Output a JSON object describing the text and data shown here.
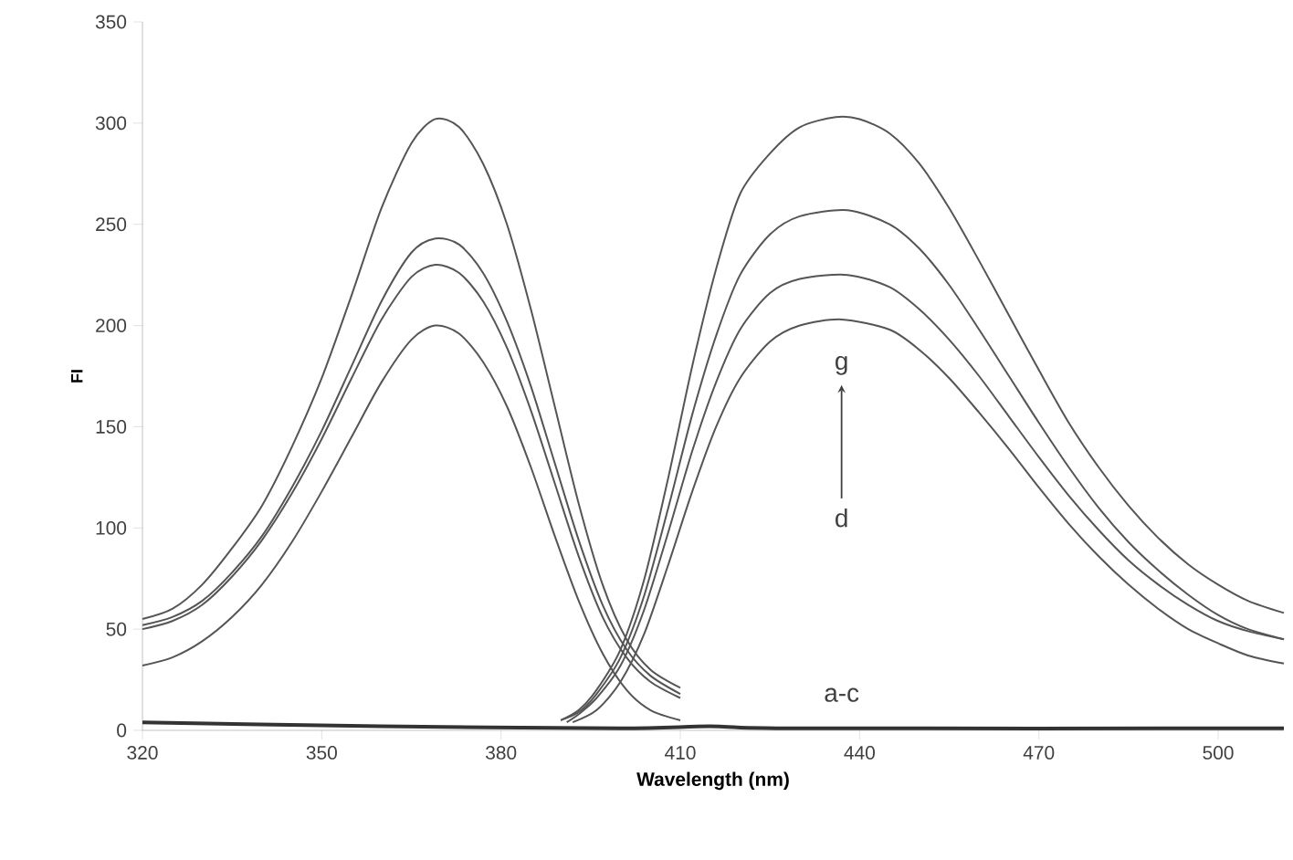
{
  "chart_data": {
    "type": "line",
    "xlabel": "Wavelength (nm)",
    "ylabel": "FI",
    "xlim": [
      320,
      511
    ],
    "ylim": [
      0,
      350
    ],
    "xticks": [
      320,
      350,
      380,
      410,
      440,
      470,
      500
    ],
    "yticks": [
      0,
      50,
      100,
      150,
      200,
      250,
      300,
      350
    ],
    "grid": false,
    "legend": false,
    "marker": "none",
    "line_style": "solid",
    "series": [
      {
        "color": "#555555",
        "x": [
          320,
          325,
          330,
          335,
          340,
          345,
          350,
          355,
          360,
          365,
          369,
          373,
          377,
          381,
          385,
          389,
          393,
          397,
          401,
          405,
          410
        ],
        "values": [
          55,
          60,
          72,
          90,
          111,
          140,
          174,
          215,
          258,
          290,
          302,
          298,
          280,
          250,
          208,
          160,
          112,
          72,
          45,
          30,
          21
        ]
      },
      {
        "color": "#555555",
        "x": [
          320,
          325,
          330,
          335,
          340,
          345,
          350,
          355,
          360,
          365,
          369,
          373,
          377,
          381,
          385,
          389,
          393,
          397,
          401,
          405,
          410
        ],
        "values": [
          52,
          56,
          64,
          78,
          96,
          120,
          148,
          180,
          212,
          236,
          243,
          240,
          226,
          202,
          170,
          132,
          94,
          62,
          40,
          27,
          18
        ]
      },
      {
        "color": "#555555",
        "x": [
          320,
          325,
          330,
          335,
          340,
          345,
          350,
          355,
          360,
          365,
          369,
          373,
          377,
          381,
          385,
          389,
          393,
          397,
          401,
          405,
          410
        ],
        "values": [
          50,
          54,
          62,
          76,
          94,
          117,
          144,
          174,
          203,
          224,
          230,
          226,
          212,
          189,
          158,
          122,
          86,
          56,
          36,
          24,
          16
        ]
      },
      {
        "color": "#555555",
        "x": [
          320,
          325,
          330,
          335,
          340,
          345,
          350,
          355,
          360,
          365,
          369,
          373,
          377,
          381,
          385,
          389,
          393,
          397,
          401,
          405,
          410
        ],
        "values": [
          32,
          36,
          44,
          56,
          72,
          93,
          118,
          145,
          172,
          193,
          200,
          196,
          182,
          160,
          130,
          96,
          64,
          38,
          20,
          10,
          5
        ]
      },
      {
        "color": "#555555",
        "x": [
          390,
          393,
          396,
          400,
          404,
          408,
          412,
          416,
          420,
          425,
          430,
          436,
          440,
          445,
          450,
          455,
          460,
          465,
          470,
          475,
          480,
          485,
          490,
          495,
          500,
          505,
          511
        ],
        "values": [
          5,
          10,
          20,
          40,
          75,
          125,
          180,
          228,
          265,
          285,
          298,
          303,
          302,
          295,
          280,
          258,
          232,
          205,
          178,
          152,
          130,
          111,
          95,
          82,
          72,
          64,
          58
        ]
      },
      {
        "color": "#555555",
        "x": [
          390,
          393,
          396,
          400,
          404,
          408,
          412,
          416,
          420,
          425,
          430,
          438,
          445,
          450,
          455,
          460,
          465,
          470,
          475,
          480,
          485,
          490,
          495,
          500,
          505,
          511
        ],
        "values": [
          5,
          9,
          18,
          36,
          67,
          110,
          156,
          195,
          225,
          245,
          254,
          257,
          250,
          238,
          220,
          198,
          175,
          152,
          130,
          110,
          93,
          79,
          67,
          57,
          50,
          45
        ]
      },
      {
        "color": "#555555",
        "x": [
          391,
          393,
          396,
          400,
          404,
          408,
          412,
          416,
          420,
          425,
          430,
          438,
          445,
          450,
          455,
          460,
          465,
          470,
          475,
          480,
          485,
          490,
          495,
          500,
          505,
          511
        ],
        "values": [
          4,
          8,
          16,
          32,
          60,
          98,
          138,
          172,
          198,
          216,
          223,
          225,
          219,
          208,
          193,
          175,
          155,
          135,
          116,
          99,
          84,
          72,
          62,
          54,
          49,
          45
        ]
      },
      {
        "color": "#555555",
        "x": [
          392,
          396,
          400,
          404,
          408,
          412,
          416,
          420,
          425,
          430,
          437,
          445,
          450,
          455,
          460,
          465,
          470,
          475,
          480,
          485,
          490,
          495,
          500,
          505,
          511
        ],
        "values": [
          4,
          10,
          24,
          48,
          82,
          118,
          150,
          174,
          192,
          200,
          203,
          198,
          188,
          174,
          157,
          139,
          120,
          102,
          86,
          72,
          60,
          50,
          43,
          37,
          33
        ]
      },
      {
        "color": "#333333",
        "x": [
          320,
          360,
          400,
          415,
          430,
          511
        ],
        "values": [
          4,
          2,
          1,
          2,
          1,
          1
        ]
      }
    ],
    "annotations": [
      "g",
      "d",
      "a-c"
    ]
  }
}
